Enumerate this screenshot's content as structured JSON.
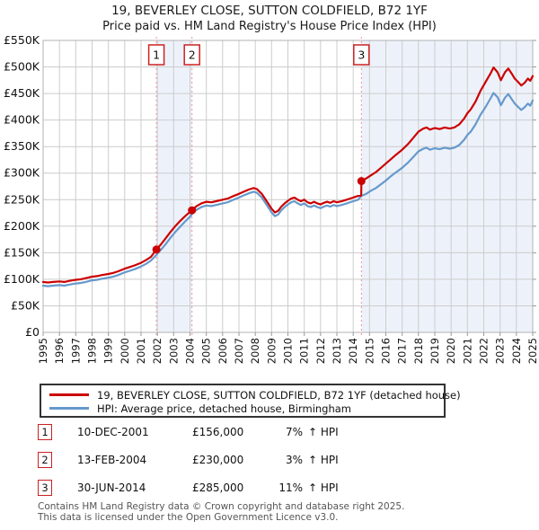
{
  "chart_data": {
    "type": "line",
    "title": "19, BEVERLEY CLOSE, SUTTON COLDFIELD, B72 1YF",
    "subtitle": "Price paid vs. HM Land Registry's House Price Index (HPI)",
    "xlabel": "",
    "ylabel": "",
    "units": "GBP thousands",
    "x_range": [
      1995,
      2025
    ],
    "y_range": [
      0,
      550
    ],
    "y_tick_step": 50,
    "grid": true,
    "legend_position": "bottom",
    "y_tick_labels": [
      "£0",
      "£50K",
      "£100K",
      "£150K",
      "£200K",
      "£250K",
      "£300K",
      "£350K",
      "£400K",
      "£450K",
      "£500K",
      "£550K"
    ],
    "x_tick_labels": [
      "1995",
      "1996",
      "1997",
      "1998",
      "1999",
      "2000",
      "2001",
      "2002",
      "2003",
      "2004",
      "2005",
      "2006",
      "2007",
      "2008",
      "2009",
      "2010",
      "2011",
      "2012",
      "2013",
      "2014",
      "2015",
      "2016",
      "2017",
      "2018",
      "2019",
      "2020",
      "2021",
      "2022",
      "2023",
      "2024",
      "2025"
    ],
    "colors": {
      "band": "#edf2fa",
      "dashed_line": "#f09090",
      "grid": "#cccccc",
      "frame": "#b3b3b3",
      "tick": "#999999",
      "marker_box_border": "#cc2222",
      "text": "#111111"
    },
    "series": [
      {
        "name": "19, BEVERLEY CLOSE, SUTTON COLDFIELD, B72 1YF (detached house)",
        "color": "#cc0000",
        "points": [
          [
            1995,
            95
          ],
          [
            1995.3,
            94
          ],
          [
            1995.6,
            95
          ],
          [
            1996,
            96
          ],
          [
            1996.3,
            95
          ],
          [
            1996.6,
            97
          ],
          [
            1997,
            99
          ],
          [
            1997.3,
            100
          ],
          [
            1997.6,
            102
          ],
          [
            1998,
            105
          ],
          [
            1998.3,
            106
          ],
          [
            1998.6,
            108
          ],
          [
            1999,
            110
          ],
          [
            1999.3,
            112
          ],
          [
            1999.6,
            115
          ],
          [
            2000,
            120
          ],
          [
            2000.3,
            123
          ],
          [
            2000.6,
            126
          ],
          [
            2001,
            131
          ],
          [
            2001.3,
            136
          ],
          [
            2001.6,
            142
          ],
          [
            2001.94,
            156
          ],
          [
            2002.2,
            165
          ],
          [
            2002.5,
            177
          ],
          [
            2002.8,
            189
          ],
          [
            2003.1,
            200
          ],
          [
            2003.4,
            210
          ],
          [
            2003.7,
            219
          ],
          [
            2004,
            227
          ],
          [
            2004.12,
            230
          ],
          [
            2004.4,
            238
          ],
          [
            2004.7,
            243
          ],
          [
            2005,
            246
          ],
          [
            2005.3,
            245
          ],
          [
            2005.6,
            247
          ],
          [
            2006,
            250
          ],
          [
            2006.3,
            252
          ],
          [
            2006.6,
            256
          ],
          [
            2007,
            261
          ],
          [
            2007.3,
            265
          ],
          [
            2007.6,
            269
          ],
          [
            2007.9,
            272
          ],
          [
            2008.1,
            270
          ],
          [
            2008.4,
            261
          ],
          [
            2008.7,
            247
          ],
          [
            2009,
            233
          ],
          [
            2009.2,
            226
          ],
          [
            2009.4,
            229
          ],
          [
            2009.6,
            237
          ],
          [
            2009.8,
            243
          ],
          [
            2010,
            248
          ],
          [
            2010.2,
            252
          ],
          [
            2010.4,
            254
          ],
          [
            2010.6,
            250
          ],
          [
            2010.8,
            247
          ],
          [
            2011,
            250
          ],
          [
            2011.2,
            245
          ],
          [
            2011.4,
            243
          ],
          [
            2011.6,
            246
          ],
          [
            2011.8,
            243
          ],
          [
            2012,
            241
          ],
          [
            2012.2,
            244
          ],
          [
            2012.4,
            246
          ],
          [
            2012.6,
            244
          ],
          [
            2012.8,
            247
          ],
          [
            2013,
            245
          ],
          [
            2013.3,
            247
          ],
          [
            2013.6,
            250
          ],
          [
            2013.9,
            253
          ],
          [
            2014.1,
            255
          ],
          [
            2014.3,
            257
          ],
          [
            2014.49,
            258
          ],
          [
            2014.5,
            285
          ],
          [
            2014.8,
            290
          ],
          [
            2015.1,
            296
          ],
          [
            2015.4,
            302
          ],
          [
            2015.7,
            310
          ],
          [
            2016,
            318
          ],
          [
            2016.3,
            326
          ],
          [
            2016.6,
            334
          ],
          [
            2017,
            344
          ],
          [
            2017.4,
            356
          ],
          [
            2017.7,
            367
          ],
          [
            2018,
            378
          ],
          [
            2018.3,
            384
          ],
          [
            2018.5,
            386
          ],
          [
            2018.7,
            382
          ],
          [
            2019,
            385
          ],
          [
            2019.3,
            383
          ],
          [
            2019.6,
            386
          ],
          [
            2019.9,
            384
          ],
          [
            2020.2,
            386
          ],
          [
            2020.5,
            392
          ],
          [
            2020.8,
            403
          ],
          [
            2021,
            413
          ],
          [
            2021.2,
            420
          ],
          [
            2021.5,
            435
          ],
          [
            2021.8,
            455
          ],
          [
            2022.1,
            471
          ],
          [
            2022.4,
            487
          ],
          [
            2022.6,
            499
          ],
          [
            2022.85,
            490
          ],
          [
            2023.05,
            475
          ],
          [
            2023.3,
            490
          ],
          [
            2023.5,
            497
          ],
          [
            2023.7,
            488
          ],
          [
            2023.9,
            478
          ],
          [
            2024.1,
            472
          ],
          [
            2024.3,
            465
          ],
          [
            2024.5,
            470
          ],
          [
            2024.7,
            478
          ],
          [
            2024.85,
            474
          ],
          [
            2025,
            483
          ]
        ]
      },
      {
        "name": "HPI: Average price, detached house, Birmingham",
        "color": "#6699cc",
        "points": [
          [
            1995,
            88
          ],
          [
            1995.3,
            87
          ],
          [
            1995.6,
            88
          ],
          [
            1996,
            89
          ],
          [
            1996.3,
            88
          ],
          [
            1996.6,
            90
          ],
          [
            1997,
            92
          ],
          [
            1997.3,
            93
          ],
          [
            1997.6,
            95
          ],
          [
            1998,
            98
          ],
          [
            1998.3,
            99
          ],
          [
            1998.6,
            101
          ],
          [
            1999,
            103
          ],
          [
            1999.3,
            105
          ],
          [
            1999.6,
            108
          ],
          [
            2000,
            113
          ],
          [
            2000.3,
            116
          ],
          [
            2000.6,
            119
          ],
          [
            2001,
            124
          ],
          [
            2001.3,
            129
          ],
          [
            2001.6,
            135
          ],
          [
            2001.94,
            146
          ],
          [
            2002.2,
            155
          ],
          [
            2002.5,
            166
          ],
          [
            2002.8,
            178
          ],
          [
            2003.1,
            189
          ],
          [
            2003.4,
            199
          ],
          [
            2003.7,
            209
          ],
          [
            2004,
            218
          ],
          [
            2004.12,
            223
          ],
          [
            2004.4,
            231
          ],
          [
            2004.7,
            236
          ],
          [
            2005,
            239
          ],
          [
            2005.3,
            238
          ],
          [
            2005.6,
            240
          ],
          [
            2006,
            243
          ],
          [
            2006.3,
            245
          ],
          [
            2006.6,
            249
          ],
          [
            2007,
            254
          ],
          [
            2007.3,
            258
          ],
          [
            2007.6,
            262
          ],
          [
            2007.9,
            265
          ],
          [
            2008.1,
            263
          ],
          [
            2008.4,
            254
          ],
          [
            2008.7,
            240
          ],
          [
            2009,
            226
          ],
          [
            2009.2,
            219
          ],
          [
            2009.4,
            222
          ],
          [
            2009.6,
            230
          ],
          [
            2009.8,
            236
          ],
          [
            2010,
            241
          ],
          [
            2010.2,
            245
          ],
          [
            2010.4,
            247
          ],
          [
            2010.6,
            243
          ],
          [
            2010.8,
            240
          ],
          [
            2011,
            243
          ],
          [
            2011.2,
            238
          ],
          [
            2011.4,
            236
          ],
          [
            2011.6,
            239
          ],
          [
            2011.8,
            236
          ],
          [
            2012,
            234
          ],
          [
            2012.2,
            237
          ],
          [
            2012.4,
            239
          ],
          [
            2012.6,
            237
          ],
          [
            2012.8,
            240
          ],
          [
            2013,
            238
          ],
          [
            2013.3,
            240
          ],
          [
            2013.6,
            243
          ],
          [
            2013.9,
            246
          ],
          [
            2014.1,
            248
          ],
          [
            2014.3,
            250
          ],
          [
            2014.5,
            257
          ],
          [
            2014.8,
            261
          ],
          [
            2015.1,
            267
          ],
          [
            2015.4,
            272
          ],
          [
            2015.7,
            279
          ],
          [
            2016,
            286
          ],
          [
            2016.3,
            294
          ],
          [
            2016.6,
            301
          ],
          [
            2017,
            310
          ],
          [
            2017.4,
            321
          ],
          [
            2017.7,
            331
          ],
          [
            2018,
            341
          ],
          [
            2018.3,
            346
          ],
          [
            2018.5,
            348
          ],
          [
            2018.7,
            344
          ],
          [
            2019,
            347
          ],
          [
            2019.3,
            345
          ],
          [
            2019.6,
            348
          ],
          [
            2019.9,
            346
          ],
          [
            2020.2,
            348
          ],
          [
            2020.5,
            353
          ],
          [
            2020.8,
            363
          ],
          [
            2021,
            372
          ],
          [
            2021.2,
            378
          ],
          [
            2021.5,
            392
          ],
          [
            2021.8,
            410
          ],
          [
            2022.1,
            424
          ],
          [
            2022.4,
            440
          ],
          [
            2022.6,
            451
          ],
          [
            2022.85,
            443
          ],
          [
            2023.05,
            428
          ],
          [
            2023.3,
            442
          ],
          [
            2023.5,
            449
          ],
          [
            2023.7,
            440
          ],
          [
            2023.9,
            431
          ],
          [
            2024.1,
            425
          ],
          [
            2024.3,
            419
          ],
          [
            2024.5,
            424
          ],
          [
            2024.7,
            431
          ],
          [
            2024.85,
            427
          ],
          [
            2025,
            437
          ]
        ]
      }
    ],
    "shaded_bands": [
      [
        2001.94,
        2004.12
      ],
      [
        2014.5,
        2025
      ]
    ],
    "markers": [
      {
        "label": "1",
        "x": 2001.94,
        "y": 156
      },
      {
        "label": "2",
        "x": 2004.12,
        "y": 230
      },
      {
        "label": "3",
        "x": 2014.5,
        "y": 285
      }
    ]
  },
  "transactions": [
    {
      "num": "1",
      "date": "10-DEC-2001",
      "price": "£156,000",
      "pct": "7%",
      "vs_hpi": "↑ HPI"
    },
    {
      "num": "2",
      "date": "13-FEB-2004",
      "price": "£230,000",
      "pct": "3%",
      "vs_hpi": "↑ HPI"
    },
    {
      "num": "3",
      "date": "30-JUN-2014",
      "price": "£285,000",
      "pct": "11%",
      "vs_hpi": "↑ HPI"
    }
  ],
  "footer": {
    "line1": "Contains HM Land Registry data © Crown copyright and database right 2025.",
    "line2": "This data is licensed under the Open Government Licence v3.0."
  }
}
